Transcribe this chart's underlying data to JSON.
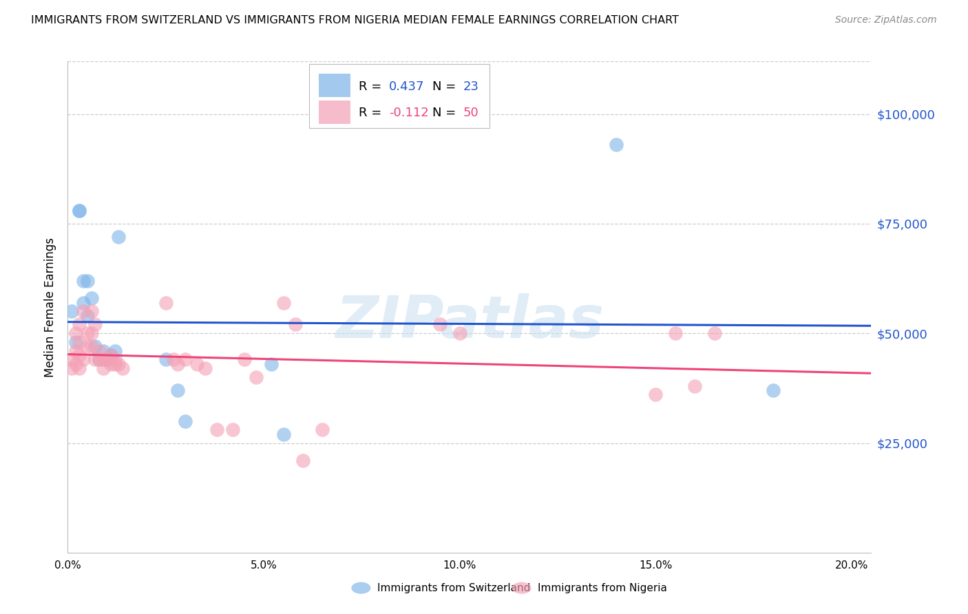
{
  "title": "IMMIGRANTS FROM SWITZERLAND VS IMMIGRANTS FROM NIGERIA MEDIAN FEMALE EARNINGS CORRELATION CHART",
  "source": "Source: ZipAtlas.com",
  "ylabel": "Median Female Earnings",
  "ytick_labels": [
    "$25,000",
    "$50,000",
    "$75,000",
    "$100,000"
  ],
  "ytick_vals": [
    25000,
    50000,
    75000,
    100000
  ],
  "swiss_R": 0.437,
  "swiss_N": 23,
  "nigeria_R": -0.112,
  "nigeria_N": 50,
  "swiss_color": "#7EB3E8",
  "nigeria_color": "#F4A0B5",
  "swiss_line_color": "#2255CC",
  "nigeria_line_color": "#EE4477",
  "swiss_label_color": "#2255CC",
  "nigeria_label_color": "#EE4477",
  "watermark_color": "#C8DDEF",
  "background_color": "#FFFFFF",
  "grid_color": "#CCCCCC",
  "ylim": [
    0,
    112000
  ],
  "xlim": [
    0.0,
    0.205
  ],
  "swiss_x": [
    0.001,
    0.002,
    0.003,
    0.003,
    0.004,
    0.004,
    0.005,
    0.005,
    0.006,
    0.007,
    0.008,
    0.009,
    0.01,
    0.011,
    0.012,
    0.013,
    0.025,
    0.028,
    0.03,
    0.052,
    0.055,
    0.14,
    0.18
  ],
  "swiss_y": [
    55000,
    48000,
    78000,
    78000,
    57000,
    62000,
    62000,
    54000,
    58000,
    47000,
    44000,
    46000,
    44000,
    45000,
    46000,
    72000,
    44000,
    37000,
    30000,
    43000,
    27000,
    93000,
    37000
  ],
  "nigeria_x": [
    0.001,
    0.001,
    0.002,
    0.002,
    0.002,
    0.003,
    0.003,
    0.003,
    0.003,
    0.004,
    0.004,
    0.005,
    0.005,
    0.006,
    0.006,
    0.006,
    0.007,
    0.007,
    0.008,
    0.008,
    0.009,
    0.009,
    0.01,
    0.01,
    0.011,
    0.011,
    0.012,
    0.012,
    0.013,
    0.014,
    0.025,
    0.027,
    0.028,
    0.03,
    0.033,
    0.035,
    0.038,
    0.042,
    0.045,
    0.048,
    0.055,
    0.058,
    0.06,
    0.065,
    0.095,
    0.1,
    0.15,
    0.155,
    0.16,
    0.165
  ],
  "nigeria_y": [
    44000,
    42000,
    50000,
    46000,
    43000,
    52000,
    48000,
    45000,
    42000,
    55000,
    44000,
    50000,
    47000,
    55000,
    50000,
    47000,
    52000,
    44000,
    46000,
    44000,
    44000,
    42000,
    44000,
    44000,
    45000,
    43000,
    44000,
    43000,
    43000,
    42000,
    57000,
    44000,
    43000,
    44000,
    43000,
    42000,
    28000,
    28000,
    44000,
    40000,
    57000,
    52000,
    21000,
    28000,
    52000,
    50000,
    36000,
    50000,
    38000,
    50000
  ],
  "legend_R_label": "R = ",
  "legend_N_label": "   N = ",
  "swiss_R_str": "0.437",
  "swiss_N_str": "23",
  "nigeria_R_str": "-0.112",
  "nigeria_N_str": "50",
  "bottom_legend_swiss": "Immigrants from Switzerland",
  "bottom_legend_nigeria": "Immigrants from Nigeria"
}
